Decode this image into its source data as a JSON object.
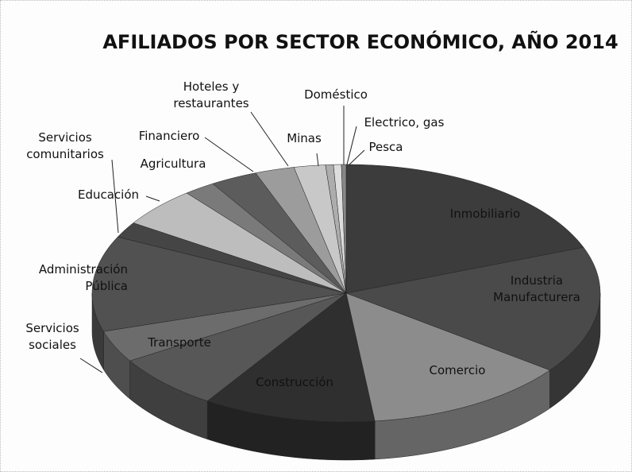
{
  "chart_data": {
    "type": "pie3d",
    "title": "AFILIADOS POR SECTOR ECONÓMICO, AÑO 2014",
    "categories": [
      "Inmobiliario",
      "Industria\nManufacturera",
      "Comercio",
      "Construcción",
      "Transporte",
      "Servicios\nsociales",
      "Administración\nPública",
      "Servicios\ncomunitarios",
      "Educación",
      "Financiero",
      "Agricultura",
      "Hoteles y\nrestaurantes",
      "Minas",
      "Doméstico",
      "Electrico, gas",
      "Pesca"
    ],
    "values": [
      19.2,
      16,
      13,
      11,
      7,
      4,
      12,
      2,
      5,
      2,
      3,
      2.5,
      2,
      0.5,
      0.5,
      0.3
    ],
    "colors": [
      "#3c3c3c",
      "#4a4a4a",
      "#8c8c8c",
      "#2f2f2f",
      "#575757",
      "#6c6c6c",
      "#515151",
      "#454545",
      "#bdbdbd",
      "#7a7a7a",
      "#5c5c5c",
      "#9c9c9c",
      "#c8c8c8",
      "#adadad",
      "#dddddd",
      "#888888"
    ]
  }
}
